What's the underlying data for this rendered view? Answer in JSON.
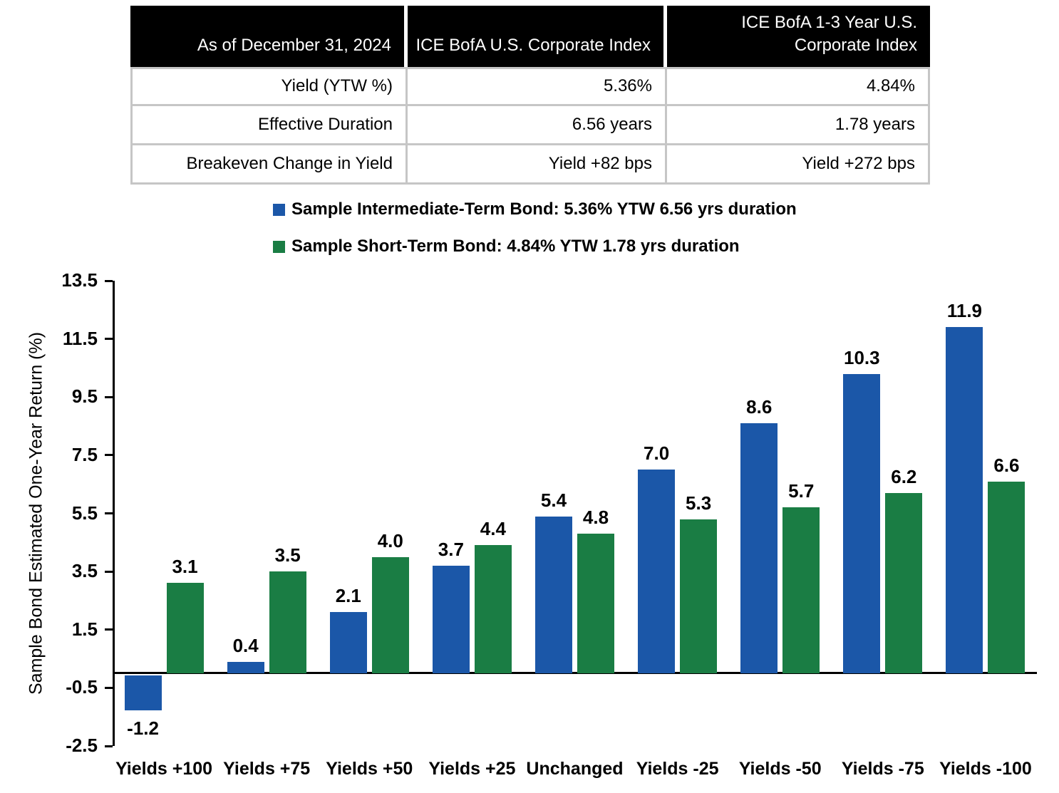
{
  "table": {
    "header": [
      "As of December 31, 2024",
      "ICE BofA U.S. Corporate Index",
      "ICE BofA 1-3 Year U.S. Corporate Index"
    ],
    "rows": [
      [
        "Yield (YTW %)",
        "5.36%",
        "4.84%"
      ],
      [
        "Effective Duration",
        "6.56 years",
        "1.78 years"
      ],
      [
        "Breakeven Change in Yield",
        "Yield +82 bps",
        "Yield +272 bps"
      ]
    ]
  },
  "legend": {
    "items": [
      {
        "label": "Sample Intermediate-Term Bond: 5.36% YTW 6.56 yrs duration",
        "color": "#1B57A8"
      },
      {
        "label": "Sample Short-Term Bond: 4.84% YTW 1.78 yrs duration",
        "color": "#1A7D44"
      }
    ]
  },
  "chart_data": {
    "type": "bar",
    "categories": [
      "Yields +100",
      "Yields +75",
      "Yields +50",
      "Yields +25",
      "Unchanged",
      "Yields -25",
      "Yields -50",
      "Yields -75",
      "Yields -100"
    ],
    "series": [
      {
        "name": "Sample Intermediate-Term Bond: 5.36% YTW 6.56 yrs duration",
        "color": "#1B57A8",
        "values": [
          -1.2,
          0.4,
          2.1,
          3.7,
          5.4,
          7.0,
          8.6,
          10.3,
          11.9
        ]
      },
      {
        "name": "Sample Short-Term Bond: 4.84% YTW 1.78 yrs duration",
        "color": "#1A7D44",
        "values": [
          3.1,
          3.5,
          4.0,
          4.4,
          4.8,
          5.3,
          5.7,
          6.2,
          6.6
        ]
      }
    ],
    "title": "",
    "xlabel": "",
    "ylabel": "Sample Bond Estimated One-Year Return (%)",
    "ylim": [
      -2.5,
      13.5
    ],
    "yticks": [
      13.5,
      11.5,
      9.5,
      7.5,
      5.5,
      3.5,
      1.5,
      -0.5,
      -2.5
    ],
    "grid": false,
    "value_labels": true,
    "legend_position": "top-left-above-chart"
  }
}
